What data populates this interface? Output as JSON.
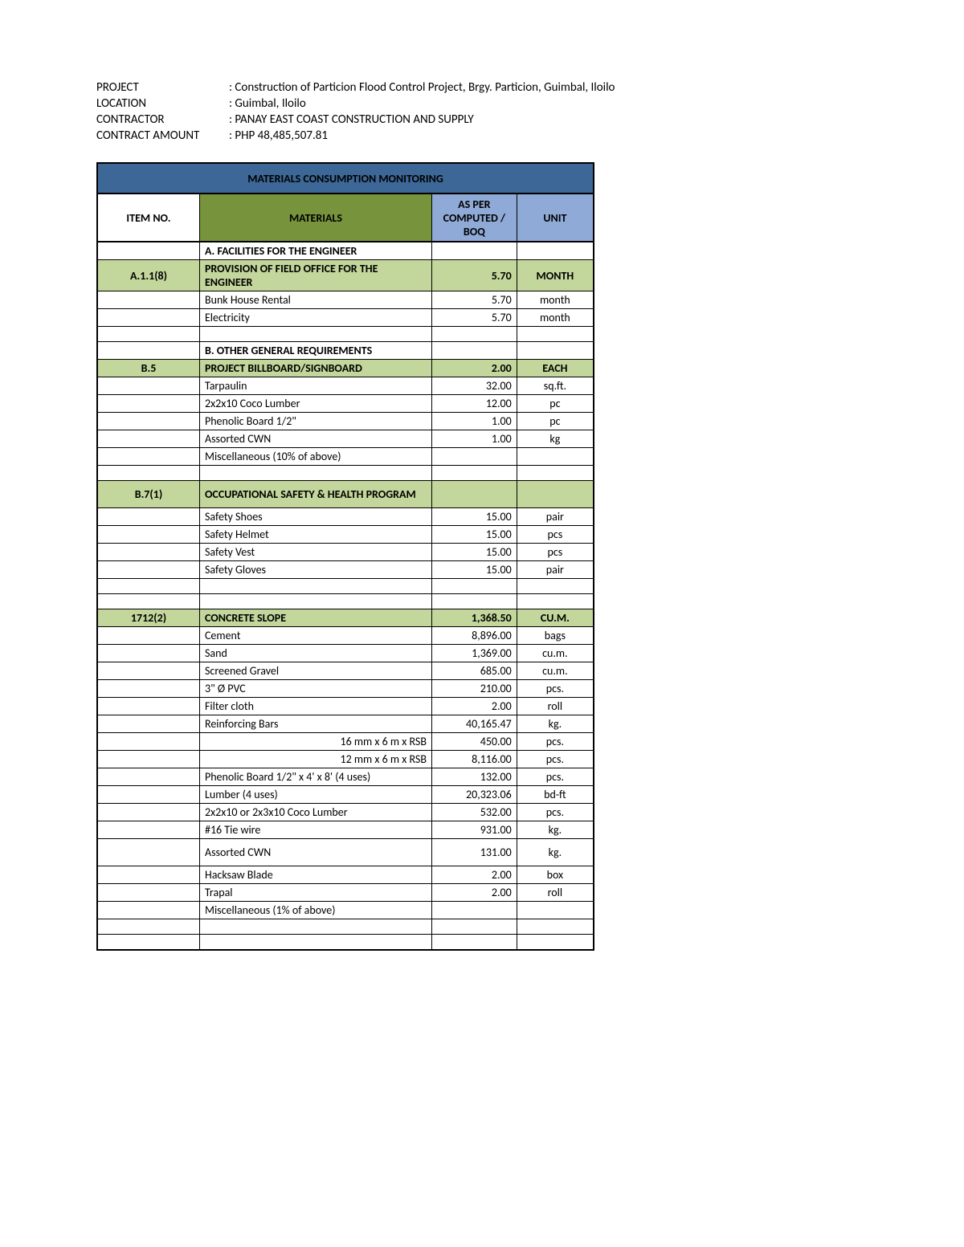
{
  "colors": {
    "title_bg": "#3c6797",
    "head_materials_bg": "#77933c",
    "head_other_bg": "#8faad6",
    "group_bg": "#c3d69b",
    "border": "#000000",
    "page_bg": "#ffffff",
    "text": "#000000"
  },
  "info": [
    {
      "label": "PROJECT",
      "value": "Construction of Particion Flood Control Project, Brgy. Particion, Guimbal, Iloilo"
    },
    {
      "label": "LOCATION",
      "value": "Guimbal, Iloilo"
    },
    {
      "label": "CONTRACTOR",
      "value": "PANAY EAST COAST CONSTRUCTION AND SUPPLY"
    },
    {
      "label": "CONTRACT AMOUNT",
      "value": "PHP 48,485,507.81"
    }
  ],
  "table": {
    "title": "MATERIALS CONSUMPTION MONITORING",
    "columns": {
      "item_no": "ITEM NO.",
      "materials": "MATERIALS",
      "boq": "AS PER COMPUTED / BOQ",
      "unit": "UNIT"
    },
    "rows": [
      {
        "type": "section",
        "desc": "A. FACILITIES FOR THE ENGINEER"
      },
      {
        "type": "group",
        "item_no": "A.1.1(8)",
        "desc": "PROVISION OF FIELD OFFICE FOR THE ENGINEER",
        "qty": "5.70",
        "unit": "MONTH",
        "tall": true
      },
      {
        "type": "data",
        "desc": "Bunk House Rental",
        "qty": "5.70",
        "unit": "month"
      },
      {
        "type": "data",
        "desc": "Electricity",
        "qty": "5.70",
        "unit": "month"
      },
      {
        "type": "empty"
      },
      {
        "type": "section",
        "desc": "B. OTHER GENERAL REQUIREMENTS"
      },
      {
        "type": "group",
        "item_no": "B.5",
        "desc": "PROJECT BILLBOARD/SIGNBOARD",
        "qty": "2.00",
        "unit": "EACH"
      },
      {
        "type": "data",
        "desc": "Tarpaulin",
        "qty": "32.00",
        "unit": "sq.ft."
      },
      {
        "type": "data",
        "desc": "2x2x10 Coco Lumber",
        "qty": "12.00",
        "unit": "pc"
      },
      {
        "type": "data",
        "desc": "Phenolic Board 1/2\"",
        "qty": "1.00",
        "unit": "pc"
      },
      {
        "type": "data",
        "desc": "Assorted CWN",
        "qty": "1.00",
        "unit": "kg"
      },
      {
        "type": "data",
        "desc": "Miscellaneous (10% of above)",
        "qty": "",
        "unit": ""
      },
      {
        "type": "empty"
      },
      {
        "type": "group",
        "item_no": "B.7(1)",
        "desc": "OCCUPATIONAL SAFETY & HEALTH PROGRAM",
        "qty": "",
        "unit": "",
        "tall": true
      },
      {
        "type": "data",
        "desc": "Safety Shoes",
        "qty": "15.00",
        "unit": "pair"
      },
      {
        "type": "data",
        "desc": "Safety Helmet",
        "qty": "15.00",
        "unit": "pcs"
      },
      {
        "type": "data",
        "desc": "Safety Vest",
        "qty": "15.00",
        "unit": "pcs"
      },
      {
        "type": "data",
        "desc": "Safety Gloves",
        "qty": "15.00",
        "unit": "pair"
      },
      {
        "type": "empty"
      },
      {
        "type": "empty"
      },
      {
        "type": "group",
        "item_no": "1712(2)",
        "desc": "CONCRETE SLOPE",
        "qty": "1,368.50",
        "unit": "CU.M."
      },
      {
        "type": "data",
        "desc": "Cement",
        "qty": "8,896.00",
        "unit": "bags"
      },
      {
        "type": "data",
        "desc": "Sand",
        "qty": "1,369.00",
        "unit": "cu.m."
      },
      {
        "type": "data",
        "desc": "Screened Gravel",
        "qty": "685.00",
        "unit": "cu.m."
      },
      {
        "type": "data",
        "desc": "3\"  Ø PVC",
        "qty": "210.00",
        "unit": "pcs."
      },
      {
        "type": "data",
        "desc": "Filter cloth",
        "qty": "2.00",
        "unit": "roll"
      },
      {
        "type": "data",
        "desc": "Reinforcing Bars",
        "qty": "40,165.47",
        "unit": "kg."
      },
      {
        "type": "data",
        "desc": "16 mm x 6 m x RSB",
        "align": "right",
        "qty": "450.00",
        "unit": "pcs."
      },
      {
        "type": "data",
        "desc": "12 mm x 6 m x RSB",
        "align": "right",
        "qty": "8,116.00",
        "unit": "pcs."
      },
      {
        "type": "data",
        "desc": "Phenolic Board 1/2\" x 4' x 8' (4 uses)",
        "qty": "132.00",
        "unit": "pcs."
      },
      {
        "type": "data",
        "desc": "Lumber (4 uses)",
        "qty": "20,323.06",
        "unit": "bd-ft"
      },
      {
        "type": "data",
        "desc": "2x2x10 or 2x3x10 Coco Lumber",
        "qty": "532.00",
        "unit": "pcs."
      },
      {
        "type": "data",
        "desc": "#16 Tie wire",
        "qty": "931.00",
        "unit": "kg."
      },
      {
        "type": "data",
        "desc": "Assorted CWN",
        "qty": "131.00",
        "unit": "kg.",
        "tall": true
      },
      {
        "type": "data",
        "desc": "Hacksaw Blade",
        "qty": "2.00",
        "unit": "box"
      },
      {
        "type": "data",
        "desc": "Trapal",
        "qty": "2.00",
        "unit": "roll"
      },
      {
        "type": "data",
        "desc": "Miscellaneous (1% of above)",
        "qty": "",
        "unit": ""
      },
      {
        "type": "empty"
      },
      {
        "type": "empty"
      }
    ]
  }
}
